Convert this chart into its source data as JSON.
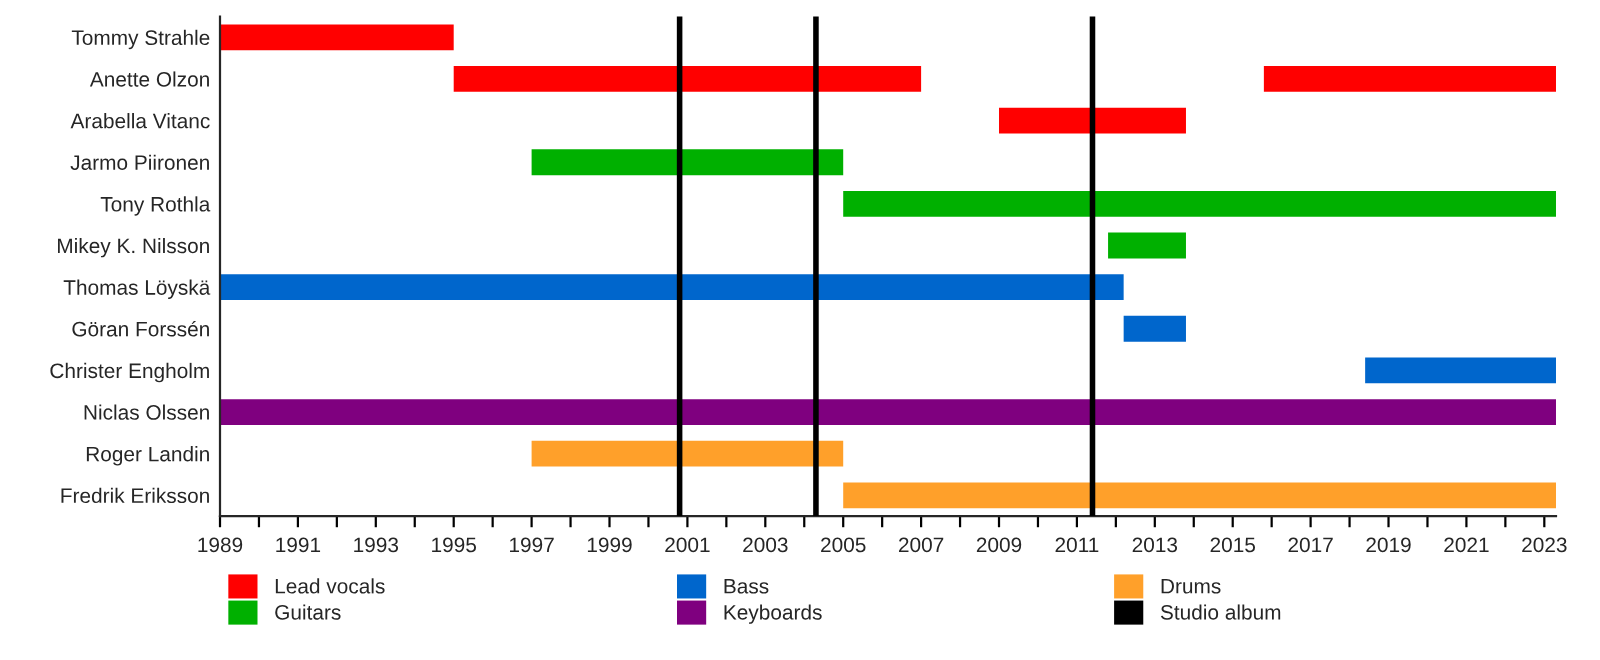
{
  "chart_data": {
    "type": "bar",
    "orientation": "horizontal",
    "categories": [
      "Tommy Strahle",
      "Anette Olzon",
      "Arabella Vitanc",
      "Jarmo Piironen",
      "Tony Rothla",
      "Mikey K. Nilsson",
      "Thomas Löyskä",
      "Göran Forssén",
      "Christer Engholm",
      "Niclas Olssen",
      "Roger Landin",
      "Fredrik Eriksson"
    ],
    "series": [
      {
        "name": "Lead vocals",
        "color": "#ff0000",
        "base": [
          1989,
          1995,
          2009,
          null,
          null,
          null,
          null,
          null,
          null,
          null,
          null,
          null
        ],
        "values": [
          6,
          12,
          4.8,
          null,
          null,
          null,
          null,
          null,
          null,
          null,
          null,
          null
        ]
      },
      {
        "color": "#ff0000",
        "base": [
          null,
          2015.8,
          null,
          null,
          null,
          null,
          null,
          null,
          null,
          null,
          null,
          null
        ],
        "values": [
          null,
          7.5,
          null,
          null,
          null,
          null,
          null,
          null,
          null,
          null,
          null,
          null
        ]
      },
      {
        "name": "Guitars",
        "color": "#00b000",
        "base": [
          null,
          null,
          null,
          1997,
          2005,
          2011.8,
          null,
          null,
          null,
          null,
          null,
          null
        ],
        "values": [
          null,
          null,
          null,
          8,
          18.3,
          2,
          null,
          null,
          null,
          null,
          null,
          null
        ]
      },
      {
        "name": "Bass",
        "color": "#0066cc",
        "base": [
          null,
          null,
          null,
          null,
          null,
          null,
          1989,
          2012.2,
          2018.4,
          null,
          null,
          null
        ],
        "values": [
          null,
          null,
          null,
          null,
          null,
          null,
          23.2,
          1.6,
          4.9,
          null,
          null,
          null
        ]
      },
      {
        "name": "Keyboards",
        "color": "#7f007f",
        "base": [
          null,
          null,
          null,
          null,
          null,
          null,
          null,
          null,
          null,
          1989,
          null,
          null
        ],
        "values": [
          null,
          null,
          null,
          null,
          null,
          null,
          null,
          null,
          null,
          34.3,
          null,
          null
        ]
      },
      {
        "name": "Drums",
        "color": "#ffa02a",
        "base": [
          null,
          null,
          null,
          null,
          null,
          null,
          null,
          null,
          null,
          null,
          1997,
          2005
        ],
        "values": [
          null,
          null,
          null,
          null,
          null,
          null,
          null,
          null,
          null,
          null,
          8,
          18.3
        ]
      }
    ],
    "ref_lines": [
      {
        "axis": "x",
        "value": 2000.8,
        "label": "Studio album",
        "color": "#000000"
      },
      {
        "axis": "x",
        "value": 2004.3,
        "color": "#000000"
      },
      {
        "axis": "x",
        "value": 2011.4,
        "color": "#000000"
      }
    ],
    "xlim": [
      1989,
      2023.3
    ],
    "xticks": [
      1989,
      {
        "value": 1990,
        "label": null
      },
      1991,
      {
        "value": 1992,
        "label": null
      },
      1993,
      {
        "value": 1994,
        "label": null
      },
      1995,
      {
        "value": 1996,
        "label": null
      },
      1997,
      {
        "value": 1998,
        "label": null
      },
      1999,
      {
        "value": 2000,
        "label": null
      },
      2001,
      {
        "value": 2002,
        "label": null
      },
      2003,
      {
        "value": 2004,
        "label": null
      },
      2005,
      {
        "value": 2006,
        "label": null
      },
      2007,
      {
        "value": 2008,
        "label": null
      },
      2009,
      {
        "value": 2010,
        "label": null
      },
      2011,
      {
        "value": 2012,
        "label": null
      },
      2013,
      {
        "value": 2014,
        "label": null
      },
      2015,
      {
        "value": 2016,
        "label": null
      },
      2017,
      {
        "value": 2018,
        "label": null
      },
      2019,
      {
        "value": 2020,
        "label": null
      },
      2021,
      {
        "value": 2022,
        "label": null
      },
      2023
    ],
    "grid": false,
    "legend": "bottom"
  }
}
